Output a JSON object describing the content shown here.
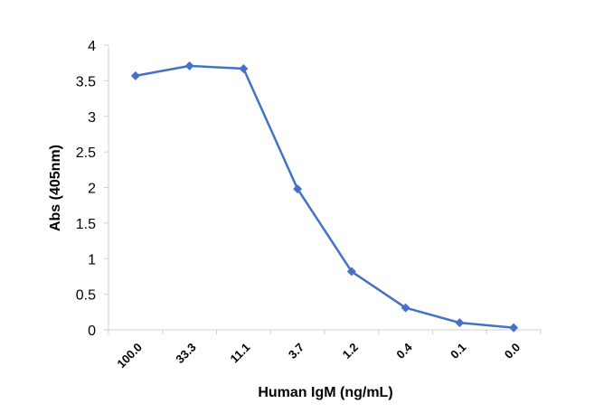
{
  "chart_data": {
    "type": "line",
    "title": "",
    "xlabel": "Human IgM (ng/mL)",
    "ylabel": "Abs (405nm)",
    "categories": [
      "100.0",
      "33.3",
      "11.1",
      "3.7",
      "1.2",
      "0.4",
      "0.1",
      "0.0"
    ],
    "series": [
      {
        "values": [
          3.57,
          3.71,
          3.67,
          1.98,
          0.82,
          0.31,
          0.1,
          0.03
        ],
        "color": "#4472C4",
        "marker": "diamond"
      }
    ],
    "ylim": [
      0,
      4
    ],
    "yticks": [
      "0",
      "0.5",
      "1",
      "1.5",
      "2",
      "2.5",
      "3",
      "3.5",
      "4"
    ],
    "ytick_values": [
      0,
      0.5,
      1,
      1.5,
      2,
      2.5,
      3,
      3.5,
      4
    ],
    "grid": false,
    "legend": "none"
  }
}
